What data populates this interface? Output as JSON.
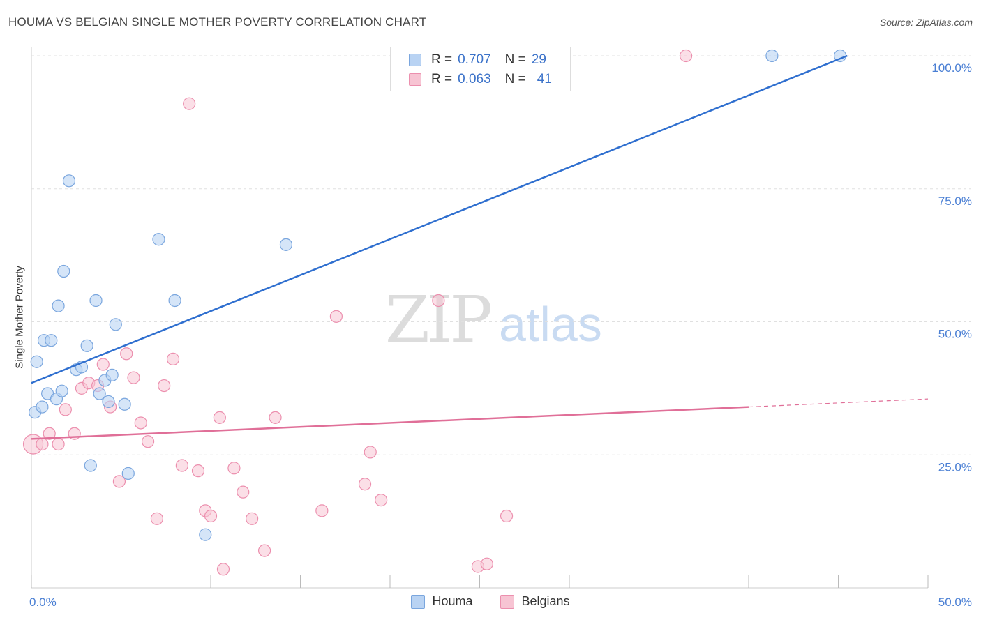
{
  "title": "HOUMA VS BELGIAN SINGLE MOTHER POVERTY CORRELATION CHART",
  "source": "Source: ZipAtlas.com",
  "watermark": {
    "part1": "ZIP",
    "part2": "atlas"
  },
  "legend": {
    "rows": [
      {
        "r_label": "R =",
        "r_value": "0.707",
        "n_label": "N =",
        "n_value": "29"
      },
      {
        "r_label": "R =",
        "r_value": "0.063",
        "n_label": "N =",
        "n_value": "41"
      }
    ]
  },
  "bottom_legend": {
    "houma": "Houma",
    "belgians": "Belgians"
  },
  "colors": {
    "houma_fill": "#b9d3f3",
    "houma_stroke": "#7aa6de",
    "houma_line": "#2f6fcf",
    "belgians_fill": "#f7c4d3",
    "belgians_stroke": "#ec8fae",
    "belgians_line": "#e06f98",
    "grid": "#e0e0e0",
    "tick_text": "#4a7fd4"
  },
  "chart_data": {
    "type": "scatter",
    "title": "HOUMA VS BELGIAN SINGLE MOTHER POVERTY CORRELATION CHART",
    "xlabel": "",
    "ylabel": "Single Mother Poverty",
    "xlim": [
      0,
      50
    ],
    "ylim": [
      0,
      100
    ],
    "x_tick_labels": [
      "0.0%",
      "50.0%"
    ],
    "y_ticks": [
      25,
      50,
      75,
      100
    ],
    "y_tick_labels": [
      "25.0%",
      "50.0%",
      "75.0%",
      "100.0%"
    ],
    "series": [
      {
        "name": "Houma",
        "r": 0.707,
        "n": 29,
        "trend": {
          "x": [
            0,
            45.5
          ],
          "y": [
            38.5,
            100
          ]
        },
        "points": [
          {
            "x": 0.2,
            "y": 33
          },
          {
            "x": 0.3,
            "y": 42.5
          },
          {
            "x": 0.6,
            "y": 34
          },
          {
            "x": 0.7,
            "y": 46.5
          },
          {
            "x": 0.9,
            "y": 36.5
          },
          {
            "x": 1.1,
            "y": 46.5
          },
          {
            "x": 1.4,
            "y": 35.5
          },
          {
            "x": 1.5,
            "y": 53
          },
          {
            "x": 1.7,
            "y": 37
          },
          {
            "x": 1.8,
            "y": 59.5
          },
          {
            "x": 2.1,
            "y": 76.5
          },
          {
            "x": 2.5,
            "y": 41
          },
          {
            "x": 2.8,
            "y": 41.5
          },
          {
            "x": 3.1,
            "y": 45.5
          },
          {
            "x": 3.3,
            "y": 23
          },
          {
            "x": 3.6,
            "y": 54
          },
          {
            "x": 3.8,
            "y": 36.5
          },
          {
            "x": 4.1,
            "y": 39
          },
          {
            "x": 4.3,
            "y": 35
          },
          {
            "x": 4.5,
            "y": 40
          },
          {
            "x": 4.7,
            "y": 49.5
          },
          {
            "x": 5.2,
            "y": 34.5
          },
          {
            "x": 5.4,
            "y": 21.5
          },
          {
            "x": 7.1,
            "y": 65.5
          },
          {
            "x": 8.0,
            "y": 54
          },
          {
            "x": 9.7,
            "y": 10
          },
          {
            "x": 14.2,
            "y": 64.5
          },
          {
            "x": 41.3,
            "y": 100
          },
          {
            "x": 45.1,
            "y": 100
          }
        ]
      },
      {
        "name": "Belgians",
        "r": 0.063,
        "n": 41,
        "trend": {
          "x": [
            0,
            40
          ],
          "y": [
            28,
            34
          ]
        },
        "trend_dashed_extension": {
          "x": [
            40,
            50
          ],
          "y": [
            34,
            35.5
          ]
        },
        "points": [
          {
            "x": 0.1,
            "y": 27
          },
          {
            "x": 0.6,
            "y": 27
          },
          {
            "x": 1.0,
            "y": 29
          },
          {
            "x": 1.5,
            "y": 27
          },
          {
            "x": 1.9,
            "y": 33.5
          },
          {
            "x": 2.4,
            "y": 29
          },
          {
            "x": 2.8,
            "y": 37.5
          },
          {
            "x": 3.2,
            "y": 38.5
          },
          {
            "x": 3.7,
            "y": 38
          },
          {
            "x": 4.0,
            "y": 42
          },
          {
            "x": 4.4,
            "y": 34
          },
          {
            "x": 4.9,
            "y": 20
          },
          {
            "x": 5.3,
            "y": 44
          },
          {
            "x": 5.7,
            "y": 39.5
          },
          {
            "x": 6.1,
            "y": 31
          },
          {
            "x": 6.5,
            "y": 27.5
          },
          {
            "x": 7.0,
            "y": 13
          },
          {
            "x": 7.4,
            "y": 38
          },
          {
            "x": 7.9,
            "y": 43
          },
          {
            "x": 8.4,
            "y": 23
          },
          {
            "x": 8.8,
            "y": 91
          },
          {
            "x": 9.3,
            "y": 22
          },
          {
            "x": 9.7,
            "y": 14.5
          },
          {
            "x": 10.0,
            "y": 13.5
          },
          {
            "x": 10.5,
            "y": 32
          },
          {
            "x": 10.7,
            "y": 3.5
          },
          {
            "x": 11.3,
            "y": 22.5
          },
          {
            "x": 11.8,
            "y": 18
          },
          {
            "x": 12.3,
            "y": 13
          },
          {
            "x": 13.0,
            "y": 7
          },
          {
            "x": 13.6,
            "y": 32
          },
          {
            "x": 16.2,
            "y": 14.5
          },
          {
            "x": 17.0,
            "y": 51
          },
          {
            "x": 18.6,
            "y": 19.5
          },
          {
            "x": 18.9,
            "y": 25.5
          },
          {
            "x": 19.5,
            "y": 16.5
          },
          {
            "x": 22.7,
            "y": 54
          },
          {
            "x": 24.9,
            "y": 4
          },
          {
            "x": 25.4,
            "y": 4.5
          },
          {
            "x": 26.5,
            "y": 13.5
          },
          {
            "x": 36.5,
            "y": 100
          }
        ]
      }
    ]
  }
}
